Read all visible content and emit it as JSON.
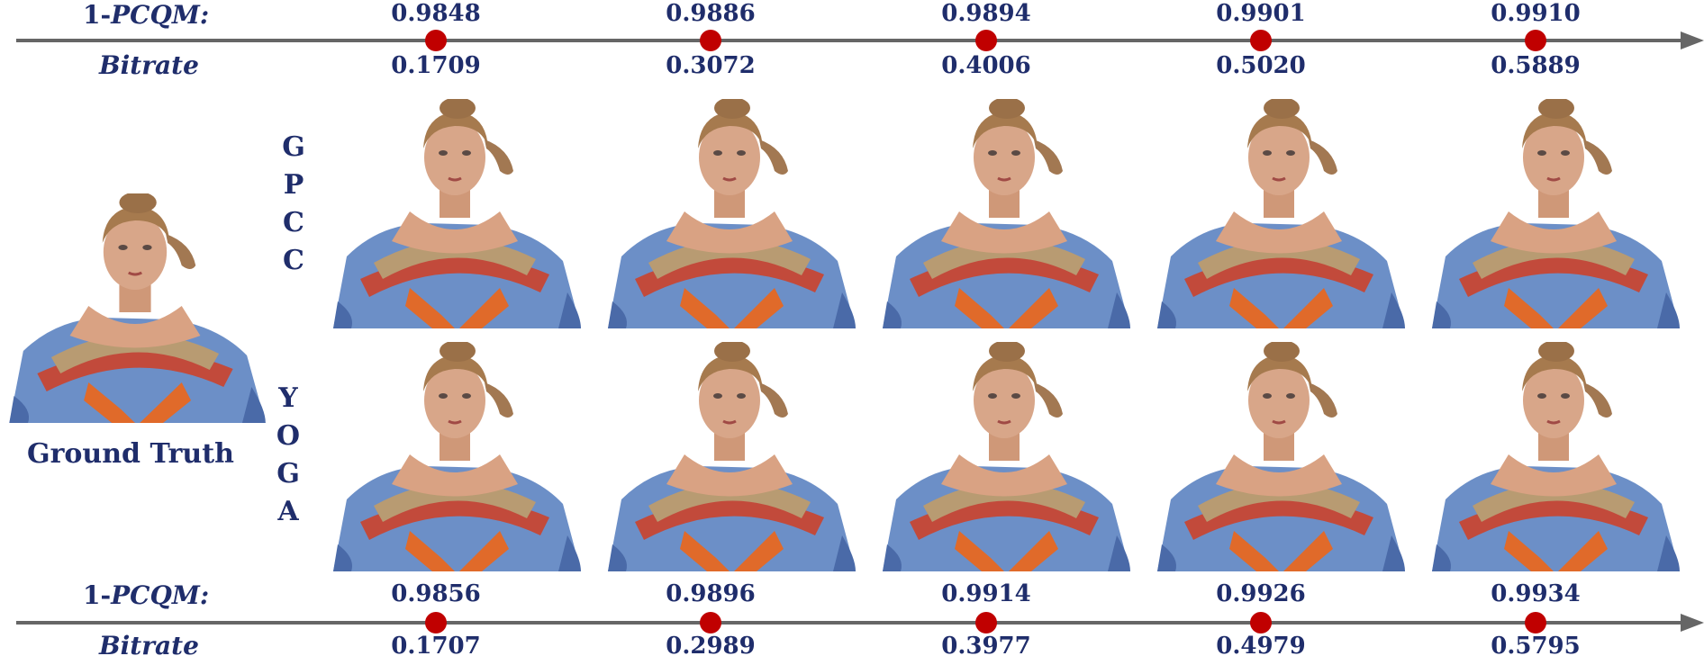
{
  "top_axis": {
    "metric_label_prefix": "1-",
    "metric_label_italic": "PCQM:",
    "bitrate_label": "Bitrate",
    "pcqm_values": [
      "0.9848",
      "0.9886",
      "0.9894",
      "0.9901",
      "0.9910"
    ],
    "bitrate_values": [
      "0.1709",
      "0.3072",
      "0.4006",
      "0.5020",
      "0.5889"
    ]
  },
  "bottom_axis": {
    "metric_label_prefix": "1-",
    "metric_label_italic": "PCQM:",
    "bitrate_label": "Bitrate",
    "pcqm_values": [
      "0.9856",
      "0.9896",
      "0.9914",
      "0.9926",
      "0.9934"
    ],
    "bitrate_values": [
      "0.1707",
      "0.2989",
      "0.3977",
      "0.4979",
      "0.5795"
    ]
  },
  "rows": [
    {
      "method_letters": [
        "G",
        "P",
        "C",
        "C"
      ]
    },
    {
      "method_letters": [
        "Y",
        "O",
        "G",
        "A"
      ]
    }
  ],
  "ground_truth_caption": "Ground Truth",
  "colors": {
    "text": "#1f2d6b",
    "axis": "#666666",
    "marker": "#c00000"
  }
}
